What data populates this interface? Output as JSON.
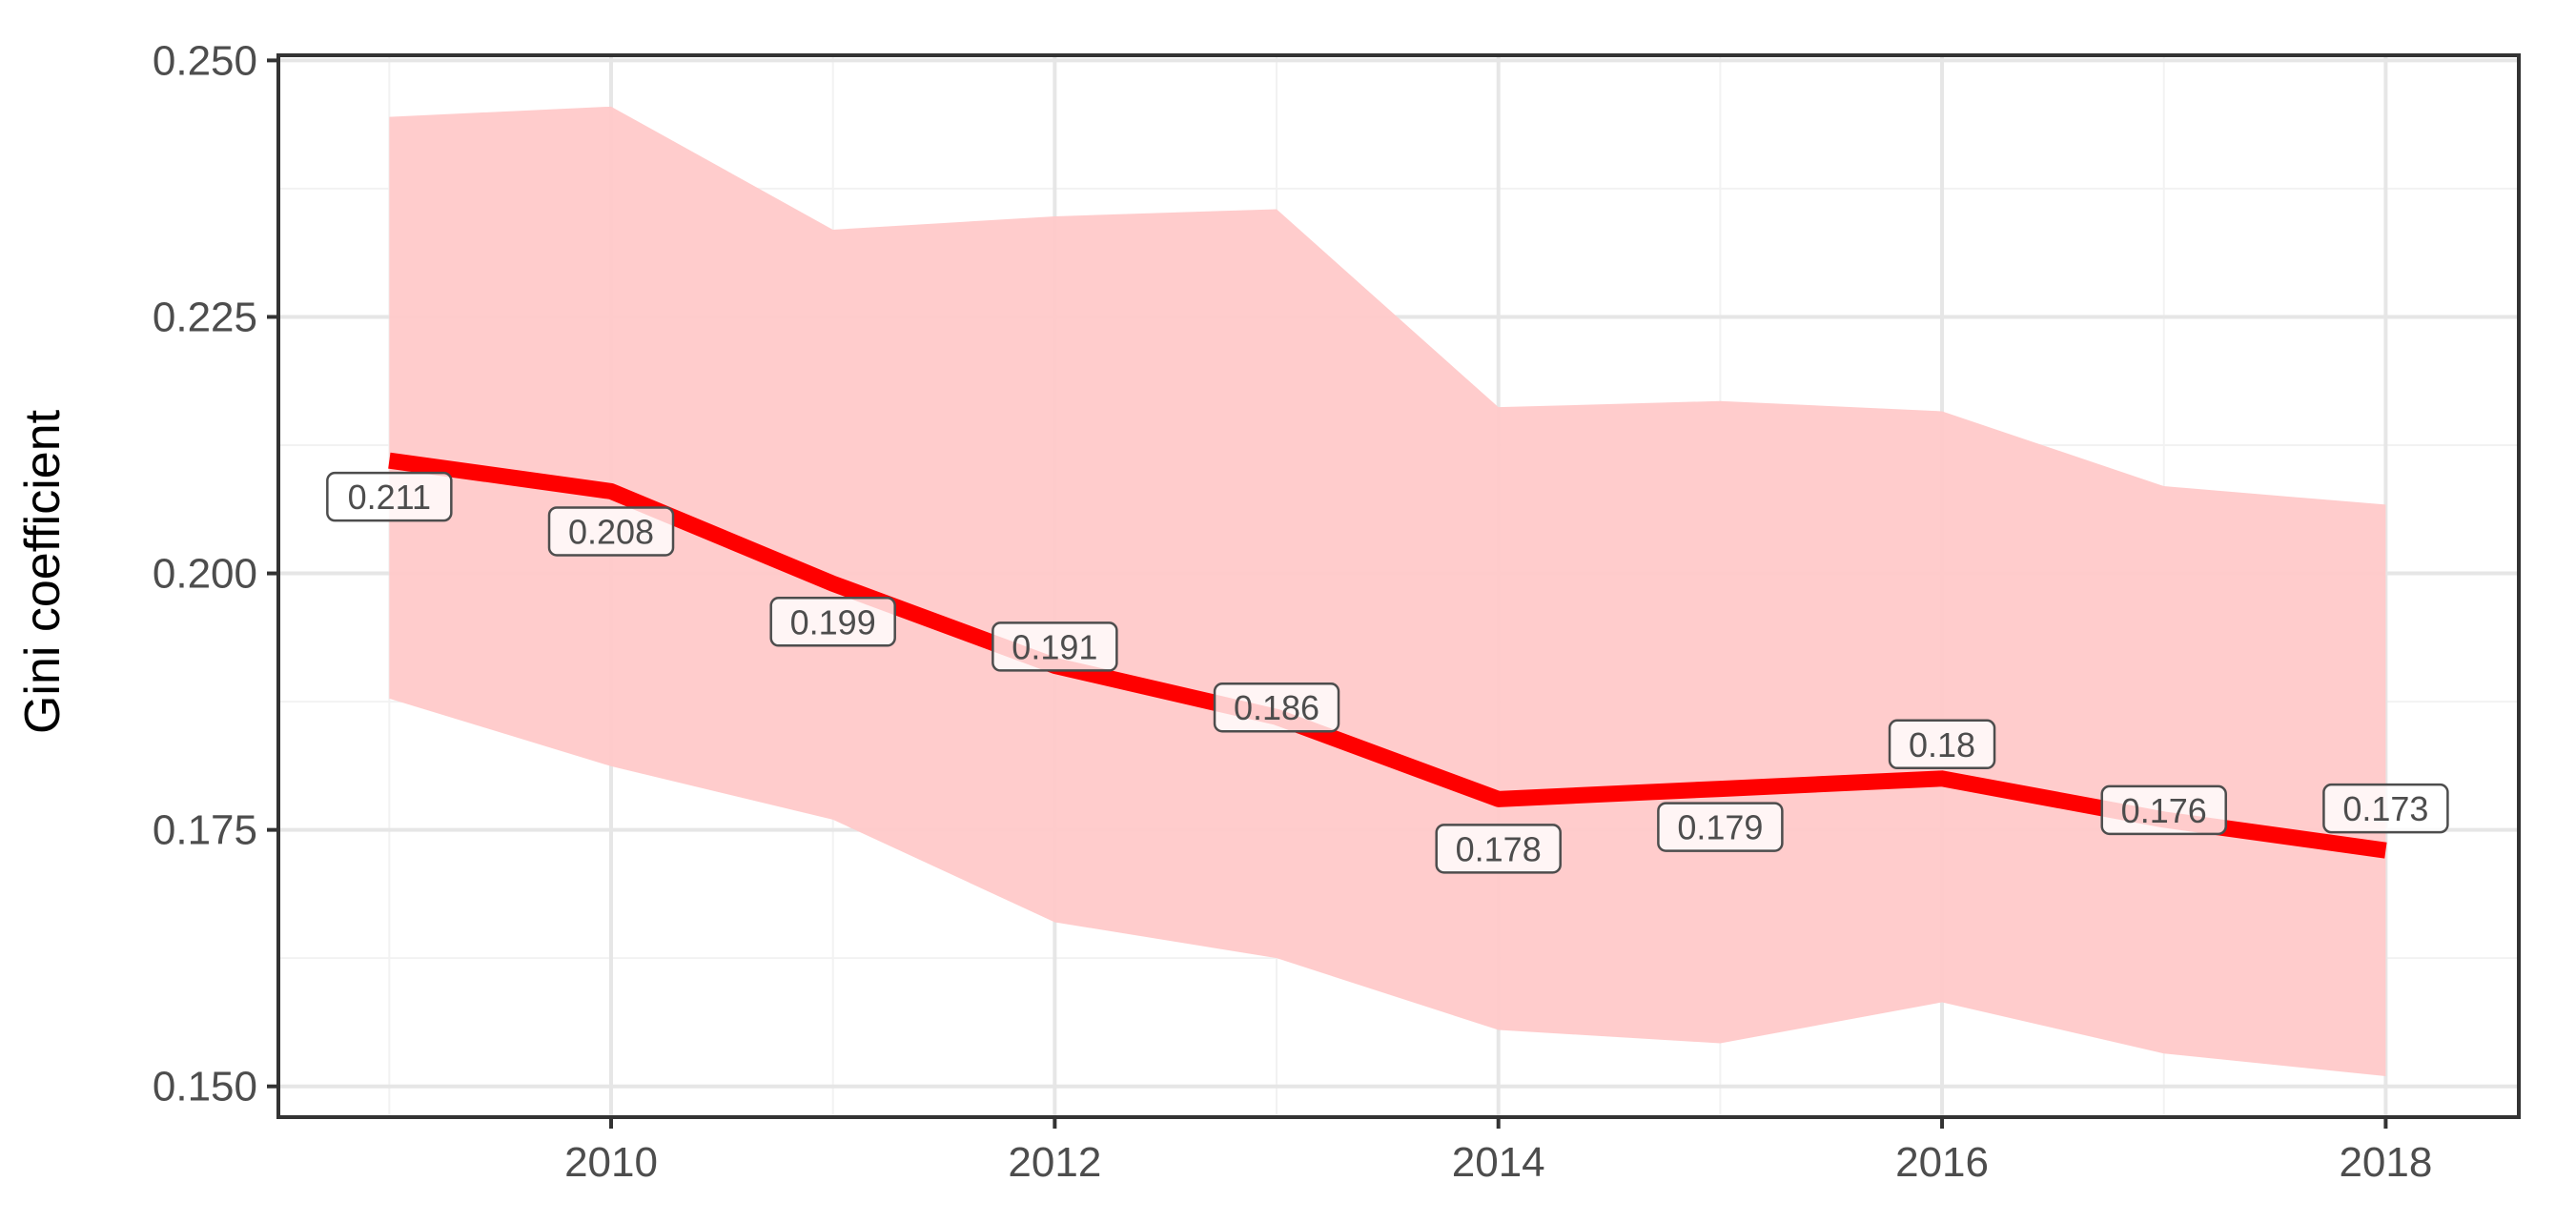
{
  "chart_data": {
    "type": "line",
    "ylabel": "Gini coefficient",
    "xlabel": "",
    "x": [
      2009,
      2010,
      2011,
      2012,
      2013,
      2014,
      2015,
      2016,
      2017,
      2018
    ],
    "series": [
      {
        "values": [
          0.211,
          0.208,
          0.199,
          0.191,
          0.186,
          0.178,
          0.179,
          0.18,
          0.176,
          0.173
        ],
        "labels": [
          "0.211",
          "0.208",
          "0.199",
          "0.191",
          "0.186",
          "0.178",
          "0.179",
          "0.18",
          "0.176",
          "0.173"
        ],
        "upper": [
          0.2445,
          0.2455,
          0.2335,
          0.2348,
          0.2355,
          0.2162,
          0.2168,
          0.2158,
          0.2085,
          0.2067
        ],
        "lower": [
          0.1878,
          0.1812,
          0.176,
          0.166,
          0.1625,
          0.1555,
          0.1542,
          0.1582,
          0.1532,
          0.151
        ]
      }
    ],
    "xlim": [
      2008.5,
      2018.6
    ],
    "ylim": [
      0.147,
      0.2505
    ],
    "x_ticks": [
      2010,
      2012,
      2014,
      2016,
      2018
    ],
    "x_tick_labels": [
      "2010",
      "2012",
      "2014",
      "2016",
      "2018"
    ],
    "y_ticks": [
      0.15,
      0.175,
      0.2,
      0.225,
      0.25
    ],
    "y_tick_labels": [
      "0.150",
      "0.175",
      "0.200",
      "0.225",
      "0.250"
    ],
    "grid": true,
    "legend": "none",
    "colors": {
      "line": "#ff0000",
      "ribbon": "#ffc9c9",
      "grid_major": "#e6e6e6",
      "grid_minor": "#f2f2f2",
      "panel_border": "#333333",
      "label_fill": "#ffffff",
      "label_border": "#4d4d4d"
    }
  }
}
